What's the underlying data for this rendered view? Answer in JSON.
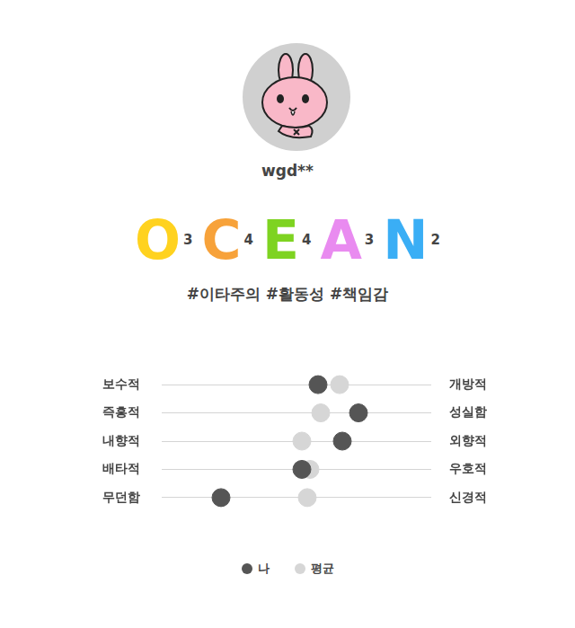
{
  "header": {
    "username": "wgd**",
    "ocean": [
      {
        "letter": "O",
        "score": 3,
        "color": "#ffd21f"
      },
      {
        "letter": "C",
        "score": 4,
        "color": "#f7a23a"
      },
      {
        "letter": "E",
        "score": 4,
        "color": "#7ed321"
      },
      {
        "letter": "A",
        "score": 3,
        "color": "#e98bf0"
      },
      {
        "letter": "N",
        "score": 2,
        "color": "#3aaef5"
      }
    ],
    "tags": "#이타주의 #활동성 #책임감"
  },
  "chart_data": {
    "type": "dot",
    "categories": [
      "보수적",
      "즉흥적",
      "내향적",
      "배타적",
      "무던함"
    ],
    "categories_right": [
      "개방적",
      "성실함",
      "외향적",
      "우호적",
      "신경적"
    ],
    "series": [
      {
        "name": "나",
        "color": "#555555",
        "values": [
          58,
          73,
          67,
          52,
          22
        ]
      },
      {
        "name": "평균",
        "color": "#d6d6d6",
        "values": [
          66,
          59,
          52,
          55,
          54
        ]
      }
    ],
    "xlim": [
      0,
      100
    ],
    "grid": true,
    "legend": "bottom",
    "tick_labels": "y"
  }
}
